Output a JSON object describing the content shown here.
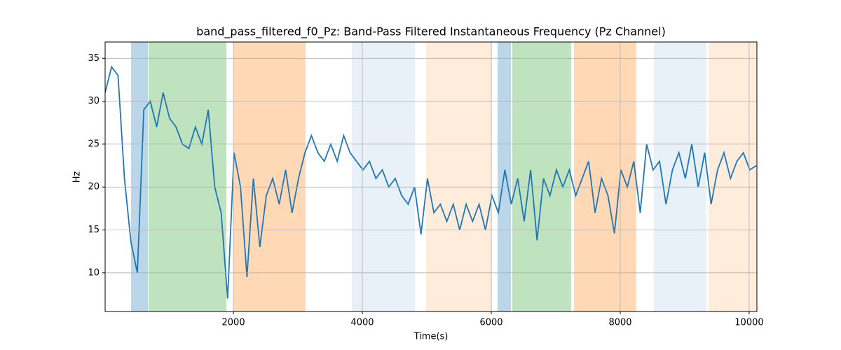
{
  "chart_data": {
    "type": "line",
    "title": "band_pass_filtered_f0_Pz: Band-Pass Filtered Instantaneous Frequency (Pz Channel)",
    "xlabel": "Time(s)",
    "ylabel": "Hz",
    "xlim": [
      10,
      10120
    ],
    "ylim": [
      5.5,
      36.9
    ],
    "xticks": [
      2000,
      4000,
      6000,
      8000,
      10000
    ],
    "yticks": [
      10,
      15,
      20,
      25,
      30,
      35
    ],
    "grid": true,
    "spans": [
      {
        "x0": 412,
        "x1": 673,
        "color": "#1f77b4",
        "opacity": 0.3
      },
      {
        "x0": 684,
        "x1": 1890,
        "color": "#2ca02c",
        "opacity": 0.3
      },
      {
        "x0": 1999,
        "x1": 3119,
        "color": "#ff7f0e",
        "opacity": 0.3
      },
      {
        "x0": 3836,
        "x1": 4814,
        "color": "#1f77b4",
        "opacity": 0.1
      },
      {
        "x0": 4988,
        "x1": 6010,
        "color": "#ff7f0e",
        "opacity": 0.15
      },
      {
        "x0": 6097,
        "x1": 6304,
        "color": "#1f77b4",
        "opacity": 0.3
      },
      {
        "x0": 6325,
        "x1": 7238,
        "color": "#2ca02c",
        "opacity": 0.3
      },
      {
        "x0": 7282,
        "x1": 8249,
        "color": "#ff7f0e",
        "opacity": 0.3
      },
      {
        "x0": 8520,
        "x1": 9336,
        "color": "#1f77b4",
        "opacity": 0.1
      },
      {
        "x0": 9369,
        "x1": 10120,
        "color": "#ff7f0e",
        "opacity": 0.15
      }
    ],
    "x": [
      10,
      110,
      210,
      310,
      410,
      510,
      610,
      710,
      810,
      910,
      1010,
      1110,
      1210,
      1310,
      1410,
      1510,
      1610,
      1710,
      1810,
      1910,
      2010,
      2110,
      2210,
      2310,
      2410,
      2510,
      2610,
      2710,
      2810,
      2910,
      3010,
      3110,
      3210,
      3310,
      3410,
      3510,
      3610,
      3710,
      3810,
      3910,
      4010,
      4110,
      4210,
      4310,
      4410,
      4510,
      4610,
      4710,
      4810,
      4910,
      5010,
      5110,
      5210,
      5310,
      5410,
      5510,
      5610,
      5710,
      5810,
      5910,
      6010,
      6110,
      6210,
      6310,
      6410,
      6510,
      6610,
      6710,
      6810,
      6910,
      7010,
      7110,
      7210,
      7310,
      7410,
      7510,
      7610,
      7710,
      7810,
      7910,
      8010,
      8110,
      8210,
      8310,
      8410,
      8510,
      8610,
      8710,
      8810,
      8910,
      9010,
      9110,
      9210,
      9310,
      9410,
      9510,
      9610,
      9710,
      9810,
      9910,
      10010,
      10110
    ],
    "series": [
      {
        "color": "#1f77b4",
        "values": [
          31,
          34,
          33,
          21,
          13.6,
          10,
          29,
          30,
          27,
          31,
          28,
          27,
          25,
          24.5,
          27,
          25,
          29,
          20,
          17,
          7,
          24,
          20,
          9.5,
          21,
          13,
          19,
          21,
          18,
          22,
          17,
          21,
          24,
          26,
          24,
          23,
          25,
          23,
          26,
          24,
          23,
          22,
          23,
          21,
          22,
          20,
          21,
          19,
          18,
          20,
          14.5,
          21,
          17,
          18,
          16,
          18,
          15,
          18,
          16,
          18,
          15,
          19,
          17,
          22,
          18,
          21,
          16,
          22,
          13.8,
          21,
          19,
          22,
          20,
          22,
          19,
          21,
          23,
          17,
          21,
          19,
          14.6,
          22,
          20,
          23,
          17,
          25,
          22,
          23,
          18,
          22,
          24,
          21,
          25,
          20,
          24,
          18,
          22,
          24,
          21,
          23,
          24,
          22,
          22.5
        ]
      }
    ]
  }
}
